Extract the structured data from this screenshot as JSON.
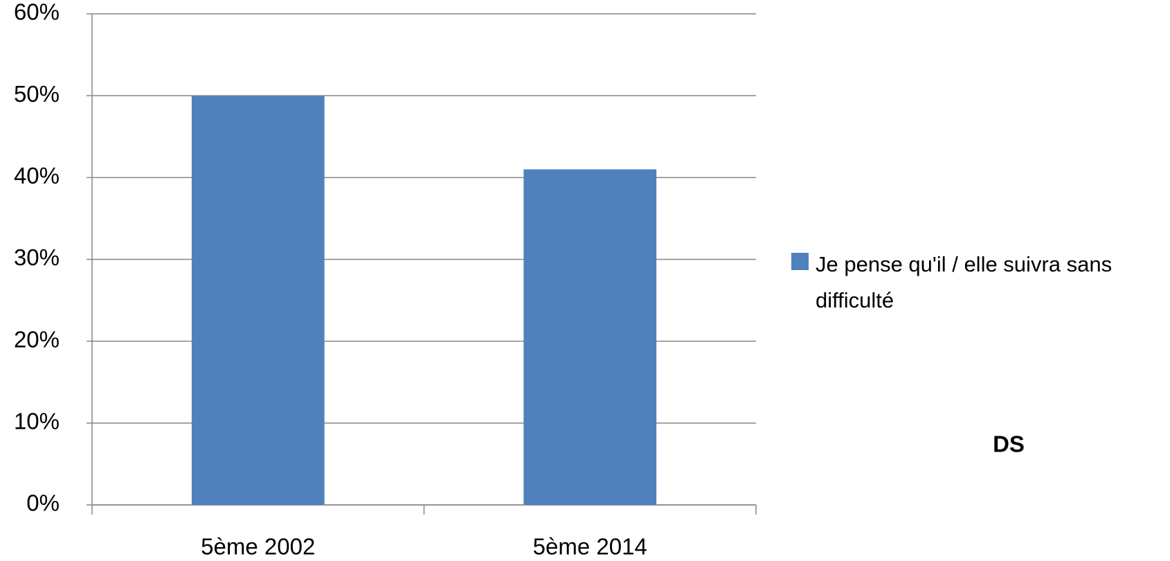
{
  "chart_data": {
    "type": "bar",
    "categories": [
      "5ème 2002",
      "5ème 2014"
    ],
    "series": [
      {
        "name": "Je pense qu'il / elle suivra sans difficulté",
        "color": "#4f81bd",
        "values": [
          50,
          41
        ]
      }
    ],
    "ylim": [
      0,
      60
    ],
    "yticks": [
      {
        "value": 0,
        "label": "0%"
      },
      {
        "value": 10,
        "label": "10%"
      },
      {
        "value": 20,
        "label": "20%"
      },
      {
        "value": 30,
        "label": "30%"
      },
      {
        "value": 40,
        "label": "40%"
      },
      {
        "value": 50,
        "label": "50%"
      },
      {
        "value": 60,
        "label": "60%"
      }
    ],
    "grid": true,
    "legend": "right",
    "annotations": [
      "DS"
    ]
  }
}
